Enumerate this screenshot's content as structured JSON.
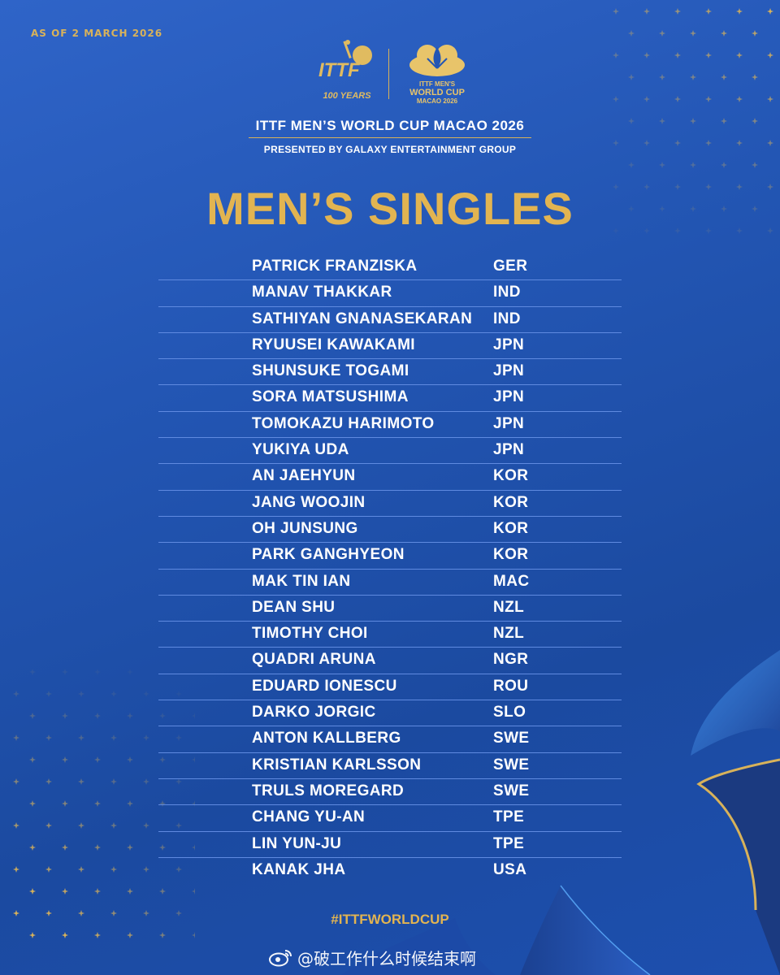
{
  "as_of": "AS OF 2 MARCH 2026",
  "logos": {
    "ittf_wordmark": "ITTF",
    "ittf_years": "100 YEARS",
    "worldcup_line1": "ITTF MEN'S",
    "worldcup_line2": "WORLD CUP",
    "worldcup_line3": "MACAO 2026"
  },
  "event_title": "ITTF MEN’S WORLD CUP MACAO 2026",
  "presented_by": "PRESENTED BY GALAXY ENTERTAINMENT GROUP",
  "main_title": "MEN’S SINGLES",
  "players": [
    {
      "name": "PATRICK FRANZISKA",
      "nat": "GER"
    },
    {
      "name": "MANAV THAKKAR",
      "nat": "IND"
    },
    {
      "name": "SATHIYAN GNANASEKARAN",
      "nat": "IND"
    },
    {
      "name": "RYUUSEI KAWAKAMI",
      "nat": "JPN"
    },
    {
      "name": "SHUNSUKE TOGAMI",
      "nat": "JPN"
    },
    {
      "name": "SORA MATSUSHIMA",
      "nat": "JPN"
    },
    {
      "name": "TOMOKAZU HARIMOTO",
      "nat": "JPN"
    },
    {
      "name": "YUKIYA UDA",
      "nat": "JPN"
    },
    {
      "name": "AN JAEHYUN",
      "nat": "KOR"
    },
    {
      "name": "JANG WOOJIN",
      "nat": "KOR"
    },
    {
      "name": "OH JUNSUNG",
      "nat": "KOR"
    },
    {
      "name": "PARK GANGHYEON",
      "nat": "KOR"
    },
    {
      "name": "MAK TIN IAN",
      "nat": "MAC"
    },
    {
      "name": "DEAN SHU",
      "nat": "NZL"
    },
    {
      "name": "TIMOTHY CHOI",
      "nat": "NZL"
    },
    {
      "name": "QUADRI ARUNA",
      "nat": "NGR"
    },
    {
      "name": "EDUARD IONESCU",
      "nat": "ROU"
    },
    {
      "name": "DARKO JORGIC",
      "nat": "SLO"
    },
    {
      "name": "ANTON KALLBERG",
      "nat": "SWE"
    },
    {
      "name": "KRISTIAN KARLSSON",
      "nat": "SWE"
    },
    {
      "name": "TRULS MOREGARD",
      "nat": "SWE"
    },
    {
      "name": "CHANG YU-AN",
      "nat": "TPE"
    },
    {
      "name": "LIN YUN-JU",
      "nat": "TPE"
    },
    {
      "name": "KANAK JHA",
      "nat": "USA"
    }
  ],
  "hashtag": "#ITTFWORLDCUP",
  "watermark": "@破工作什么时候结束啊",
  "colors": {
    "background": "#2356b4",
    "gold": "#e2b451",
    "divider": "#5f8ae0",
    "text": "#ffffff"
  },
  "icons": [
    "ittf-logo-icon",
    "world-cup-logo-icon",
    "sparkle-icon",
    "weibo-icon"
  ]
}
